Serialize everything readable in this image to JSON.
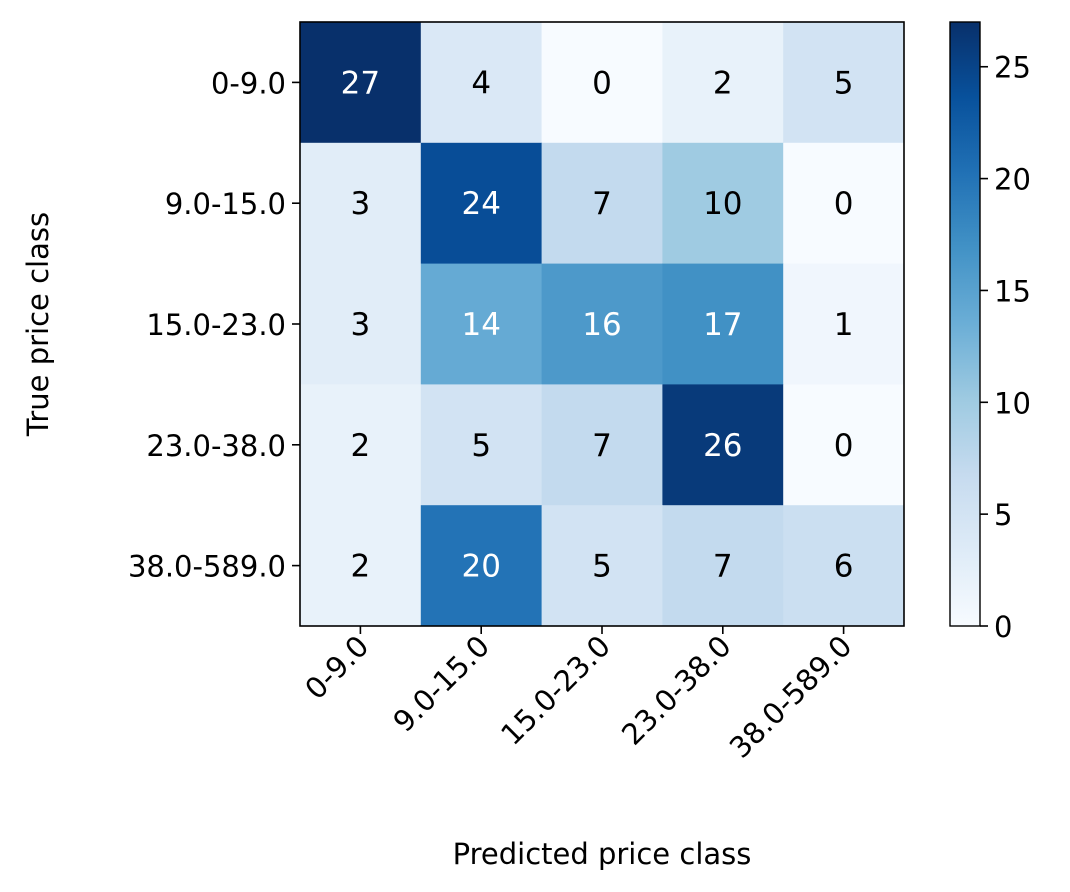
{
  "chart_data": {
    "type": "heatmap",
    "title": "",
    "xlabel": "Predicted price class",
    "ylabel": "True price class",
    "x_categories": [
      "0-9.0",
      "9.0-15.0",
      "15.0-23.0",
      "23.0-38.0",
      "38.0-589.0"
    ],
    "y_categories": [
      "0-9.0",
      "9.0-15.0",
      "15.0-23.0",
      "23.0-38.0",
      "38.0-589.0"
    ],
    "values": [
      [
        27,
        4,
        0,
        2,
        5
      ],
      [
        3,
        24,
        7,
        10,
        0
      ],
      [
        3,
        14,
        16,
        17,
        1
      ],
      [
        2,
        5,
        7,
        26,
        0
      ],
      [
        2,
        20,
        5,
        7,
        6
      ]
    ],
    "colorbar": {
      "min": 0,
      "max": 27,
      "ticks": [
        "0",
        "5",
        "10",
        "15",
        "20",
        "25"
      ],
      "colormap": "Blues"
    }
  }
}
